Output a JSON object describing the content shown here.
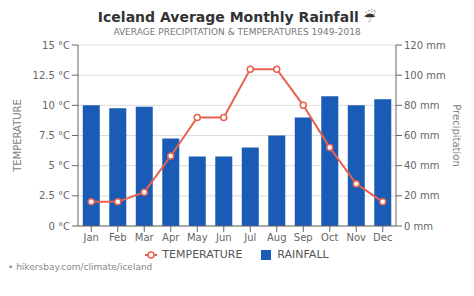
{
  "chart_data": {
    "type": "bar",
    "title": "Iceland Average Monthly Rainfall ☔",
    "subtitle": "AVERAGE PRECIPITATION & TEMPERATURES 1949-2018",
    "annotations": [
      "• hikersbay.com/climate/iceland"
    ],
    "categories": [
      "Jan",
      "Feb",
      "Mar",
      "Apr",
      "May",
      "Jun",
      "Jul",
      "Aug",
      "Sep",
      "Oct",
      "Nov",
      "Dec"
    ],
    "series": [
      {
        "name": "TEMPERATURE",
        "type": "line",
        "marker": "circle",
        "color": "#e8614e",
        "values": [
          2.0,
          2.0,
          2.8,
          5.8,
          9.0,
          9.0,
          13.0,
          13.0,
          10.0,
          6.5,
          3.5,
          2.0
        ]
      },
      {
        "name": "RAINFALL",
        "type": "bar",
        "axis": "y2",
        "color": "#1a5bb5",
        "values": [
          80,
          78,
          79,
          58,
          46,
          46,
          52,
          60,
          72,
          86,
          80,
          84
        ]
      }
    ],
    "ylabel": "TEMPERATURE",
    "y2label": "Precipitation",
    "ylim": [
      0,
      15
    ],
    "yticks": [
      {
        "value": 0,
        "label": "0 °C"
      },
      {
        "value": 2.5,
        "label": "2.5 °C"
      },
      {
        "value": 5.0,
        "label": "5 °C"
      },
      {
        "value": 7.5,
        "label": "7.5 °C"
      },
      {
        "value": 10.0,
        "label": "10 °C"
      },
      {
        "value": 12.5,
        "label": "12.5 °C"
      },
      {
        "value": 15.0,
        "label": "15 °C"
      }
    ],
    "y2lim": [
      0,
      120
    ],
    "y2ticks": [
      {
        "value": 0,
        "label": "0 mm"
      },
      {
        "value": 20,
        "label": "20 mm"
      },
      {
        "value": 40,
        "label": "40 mm"
      },
      {
        "value": 60,
        "label": "60 mm"
      },
      {
        "value": 80,
        "label": "80 mm"
      },
      {
        "value": 100,
        "label": "100 mm"
      },
      {
        "value": 120,
        "label": "120 mm"
      }
    ],
    "grid": true,
    "legend": "bottom"
  }
}
